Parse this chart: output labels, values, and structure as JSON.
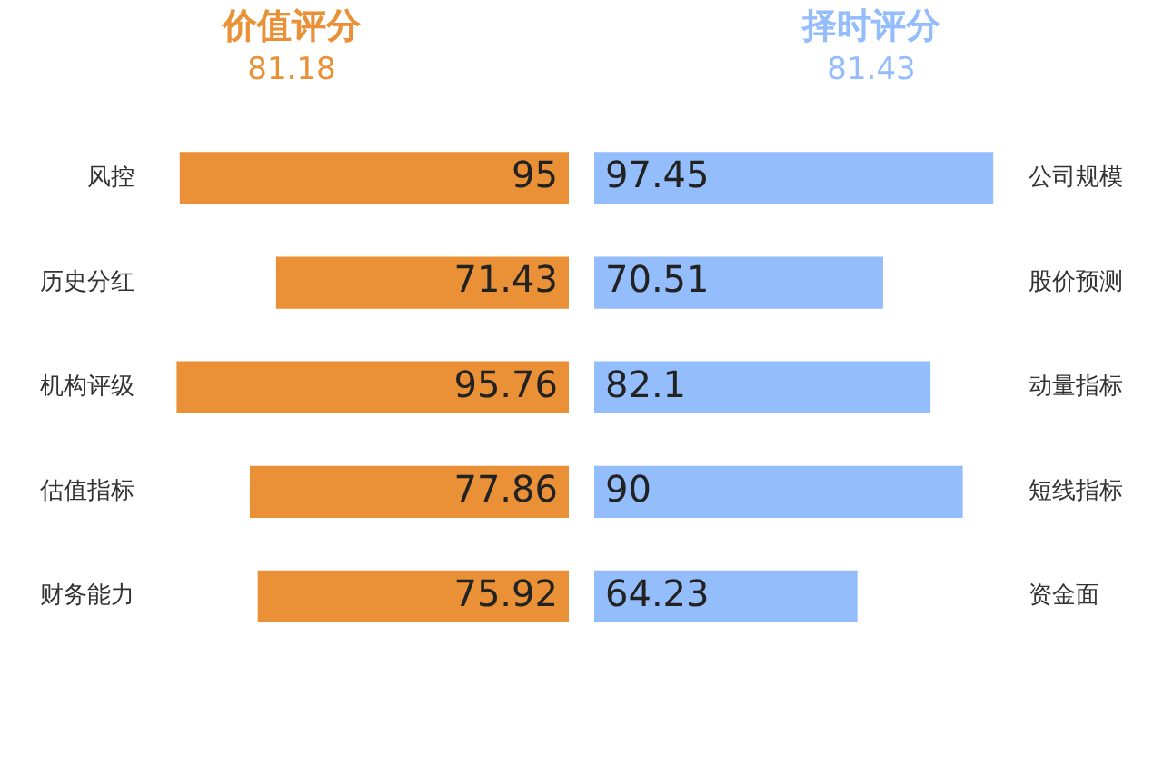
{
  "chart_data": [
    {
      "type": "bar",
      "orientation": "horizontal",
      "title": "价值评分",
      "subtitle": "81.18",
      "categories": [
        "风控",
        "历史分红",
        "机构评级",
        "估值指标",
        "财务能力"
      ],
      "values": [
        95,
        71.43,
        95.76,
        77.86,
        75.92
      ],
      "color": "#ea9036",
      "data_labels": true,
      "tick_labels": "y",
      "grid": false,
      "legend": false
    },
    {
      "type": "bar",
      "orientation": "horizontal",
      "title": "择时评分",
      "subtitle": "81.43",
      "categories": [
        "公司规模",
        "股价预测",
        "动量指标",
        "短线指标",
        "资金面"
      ],
      "values": [
        97.45,
        70.51,
        82.1,
        90,
        64.23
      ],
      "color": "#94bdfb",
      "data_labels": true,
      "tick_labels": "y",
      "grid": false,
      "legend": false
    }
  ]
}
